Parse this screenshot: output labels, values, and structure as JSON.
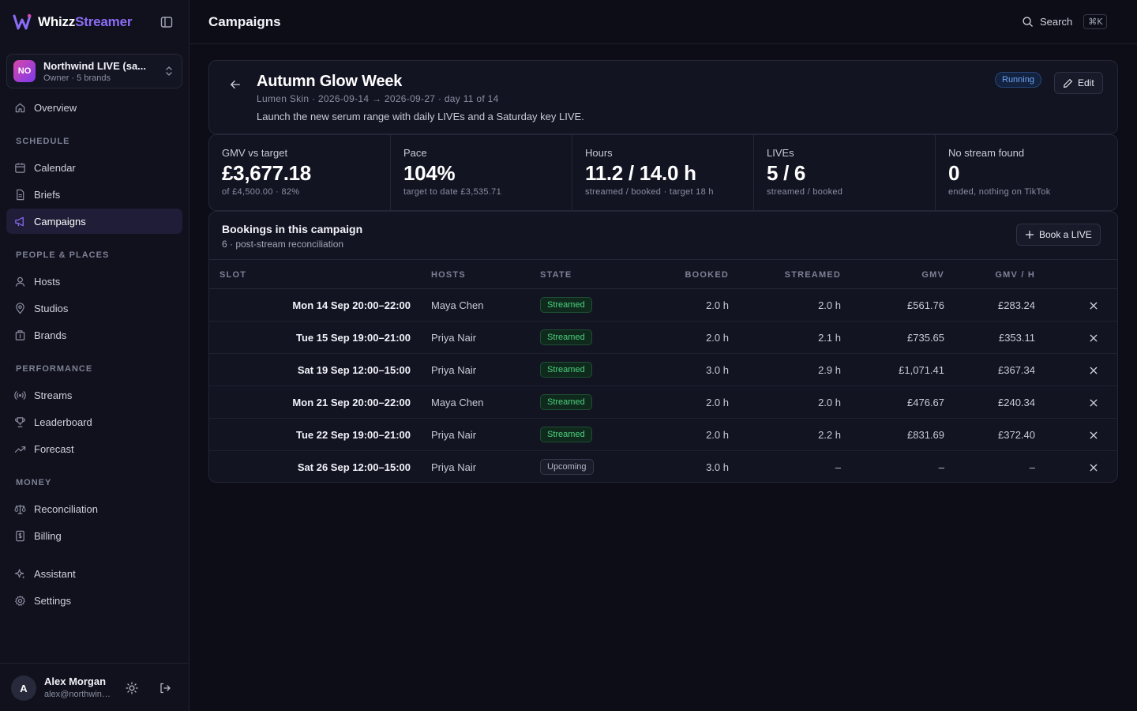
{
  "app": {
    "brand_main": "Whizz",
    "brand_accent": "Streamer",
    "accent_color": "#8b6cf6"
  },
  "workspace": {
    "initials": "NO",
    "name": "Northwind LIVE (sa...",
    "sub": "Owner · 5 brands"
  },
  "nav": {
    "overview": "Overview",
    "section_schedule": "SCHEDULE",
    "calendar": "Calendar",
    "briefs": "Briefs",
    "campaigns": "Campaigns",
    "section_people": "PEOPLE & PLACES",
    "hosts": "Hosts",
    "studios": "Studios",
    "brands": "Brands",
    "section_performance": "PERFORMANCE",
    "streams": "Streams",
    "leaderboard": "Leaderboard",
    "forecast": "Forecast",
    "section_money": "MONEY",
    "reconciliation": "Reconciliation",
    "billing": "Billing",
    "assistant": "Assistant",
    "settings": "Settings"
  },
  "user": {
    "initial": "A",
    "name": "Alex Morgan",
    "email": "alex@northwind.live"
  },
  "topbar": {
    "title": "Campaigns",
    "search_label": "Search",
    "search_shortcut": "⌘K"
  },
  "campaign": {
    "title": "Autumn Glow Week",
    "meta": "Lumen Skin · 2026-09-14 → 2026-09-27 · day 11 of 14",
    "description": "Launch the new serum range with daily LIVEs and a Saturday key LIVE.",
    "status": "Running",
    "edit_label": "Edit"
  },
  "stats": [
    {
      "label": "GMV vs target",
      "value": "£3,677.18",
      "sub": "of £4,500.00 · 82%"
    },
    {
      "label": "Pace",
      "value": "104%",
      "sub": "target to date £3,535.71"
    },
    {
      "label": "Hours",
      "value": "11.2 / 14.0 h",
      "sub": "streamed / booked · target 18 h"
    },
    {
      "label": "LIVEs",
      "value": "5 / 6",
      "sub": "streamed / booked"
    },
    {
      "label": "No stream found",
      "value": "0",
      "sub": "ended, nothing on TikTok"
    }
  ],
  "bookings": {
    "title": "Bookings in this campaign",
    "sub": "6 · post-stream reconciliation",
    "book_label": "Book a LIVE",
    "columns": {
      "slot": "SLOT",
      "hosts": "HOSTS",
      "state": "STATE",
      "booked": "BOOKED",
      "streamed": "STREAMED",
      "gmv": "GMV",
      "gmv_h": "GMV / H"
    },
    "rows": [
      {
        "slot": "Mon 14 Sep 20:00–22:00",
        "host": "Maya Chen",
        "state": "Streamed",
        "booked": "2.0 h",
        "streamed": "2.0 h",
        "gmv": "£561.76",
        "gmv_h": "£283.24"
      },
      {
        "slot": "Tue 15 Sep 19:00–21:00",
        "host": "Priya Nair",
        "state": "Streamed",
        "booked": "2.0 h",
        "streamed": "2.1 h",
        "gmv": "£735.65",
        "gmv_h": "£353.11"
      },
      {
        "slot": "Sat 19 Sep 12:00–15:00",
        "host": "Priya Nair",
        "state": "Streamed",
        "booked": "3.0 h",
        "streamed": "2.9 h",
        "gmv": "£1,071.41",
        "gmv_h": "£367.34"
      },
      {
        "slot": "Mon 21 Sep 20:00–22:00",
        "host": "Maya Chen",
        "state": "Streamed",
        "booked": "2.0 h",
        "streamed": "2.0 h",
        "gmv": "£476.67",
        "gmv_h": "£240.34"
      },
      {
        "slot": "Tue 22 Sep 19:00–21:00",
        "host": "Priya Nair",
        "state": "Streamed",
        "booked": "2.0 h",
        "streamed": "2.2 h",
        "gmv": "£831.69",
        "gmv_h": "£372.40"
      },
      {
        "slot": "Sat 26 Sep 12:00–15:00",
        "host": "Priya Nair",
        "state": "Upcoming",
        "booked": "3.0 h",
        "streamed": "–",
        "gmv": "–",
        "gmv_h": "–"
      }
    ]
  }
}
